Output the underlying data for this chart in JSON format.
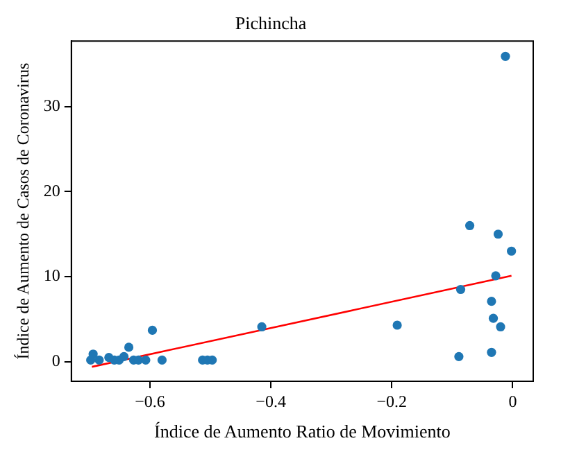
{
  "chart_data": {
    "type": "scatter",
    "title": "Pichincha",
    "xlabel": "Índice de Aumento Ratio de Movimiento",
    "ylabel": "Índice de Aumento de Casos de Coronavirus",
    "xlim": [
      -0.73,
      0.034
    ],
    "ylim": [
      -2.3,
      37.7
    ],
    "xticks": [
      {
        "value": -0.6,
        "label": "−0.6"
      },
      {
        "value": -0.4,
        "label": "−0.4"
      },
      {
        "value": -0.2,
        "label": "−0.2"
      },
      {
        "value": 0,
        "label": "0"
      }
    ],
    "yticks": [
      0,
      10,
      20,
      30
    ],
    "grid": false,
    "legend": false,
    "marker": "circle",
    "series": [
      {
        "type": "scatter",
        "color": "#1f77b4",
        "x": [
          -0.012,
          -0.071,
          -0.024,
          -0.002,
          -0.028,
          -0.086,
          -0.035,
          -0.032,
          -0.02,
          -0.035,
          -0.089,
          -0.191,
          -0.415,
          -0.596,
          -0.58,
          -0.513,
          -0.505,
          -0.497,
          -0.635,
          -0.698,
          -0.694,
          -0.684,
          -0.672,
          -0.668,
          -0.659,
          -0.651,
          -0.643,
          -0.627,
          -0.619,
          -0.607
        ],
        "values": [
          35.9,
          16.0,
          15.0,
          13.0,
          10.1,
          8.5,
          7.1,
          5.1,
          4.1,
          1.1,
          0.6,
          4.3,
          4.1,
          3.7,
          0.2,
          0.2,
          0.2,
          0.2,
          1.7,
          0.2,
          0.9,
          0.2,
          null,
          0.5,
          0.2,
          0.2,
          0.6,
          0.2,
          0.2,
          0.2
        ]
      },
      {
        "type": "line",
        "color": "#ff0000",
        "marker": "none",
        "x": [
          -0.696,
          -0.002
        ],
        "values": [
          -0.6,
          10.1
        ]
      }
    ]
  }
}
